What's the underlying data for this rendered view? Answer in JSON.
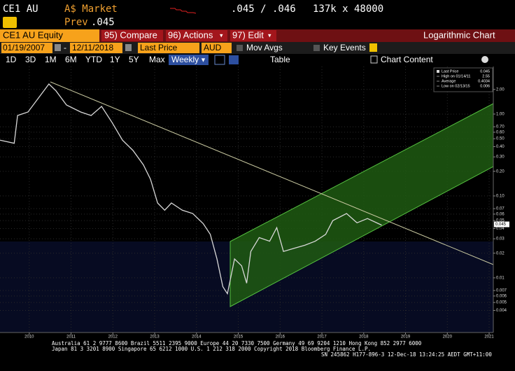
{
  "header": {
    "ticker": "CE1 AU",
    "market": "A$ Market",
    "prev_label": "Prev",
    "prev_value": ".045",
    "quote": ".045 / .046",
    "size": "137k x 48000"
  },
  "menu": {
    "security": "CE1 AU Equity",
    "compare": "95) Compare",
    "actions": "96) Actions",
    "edit": "97) Edit",
    "chart_kind": "Logarithmic Chart"
  },
  "settings": {
    "start_date": "01/19/2007",
    "end_date": "12/11/2018",
    "field": "Last Price",
    "currency": "AUD",
    "mov_avgs": "Mov Avgs",
    "key_events": "Key Events"
  },
  "toolbar": {
    "ranges": [
      "1D",
      "3D",
      "1M",
      "6M",
      "YTD",
      "1Y",
      "5Y",
      "Max"
    ],
    "frequency": "Weekly",
    "table": "Table",
    "chart_content": "Chart Content"
  },
  "chart_data": {
    "type": "line",
    "log_scale": true,
    "grid": true,
    "x": [
      2009.3,
      2009.64,
      2009.72,
      2009.97,
      2010.22,
      2010.47,
      2010.64,
      2010.89,
      2011.23,
      2011.48,
      2011.73,
      2011.98,
      2012.23,
      2012.48,
      2012.73,
      2012.9,
      2013.07,
      2013.24,
      2013.4,
      2013.66,
      2013.91,
      2014.16,
      2014.33,
      2014.49,
      2014.63,
      2014.74,
      2014.91,
      2015.08,
      2015.2,
      2015.3,
      2015.5,
      2015.75,
      2015.92,
      2016.08,
      2016.34,
      2016.59,
      2016.84,
      2017.09,
      2017.26,
      2017.59,
      2017.84,
      2018.09,
      2018.43
    ],
    "series": [
      {
        "name": "Last Price",
        "color": "#d8d8d8",
        "values": [
          0.48,
          0.44,
          0.96,
          1.06,
          1.57,
          2.33,
          1.92,
          1.29,
          1.06,
          0.96,
          1.24,
          0.79,
          0.48,
          0.36,
          0.24,
          0.16,
          0.082,
          0.067,
          0.082,
          0.067,
          0.061,
          0.046,
          0.034,
          0.017,
          0.0078,
          0.0064,
          0.017,
          0.014,
          0.0086,
          0.021,
          0.031,
          0.028,
          0.041,
          0.021,
          0.023,
          0.025,
          0.028,
          0.034,
          0.05,
          0.061,
          0.047,
          0.053,
          0.044
        ]
      }
    ],
    "xlim": [
      2009.3,
      2021.1
    ],
    "xticks": [
      2010,
      2011,
      2012,
      2013,
      2014,
      2015,
      2016,
      2017,
      2018,
      2019,
      2020,
      2021
    ],
    "ylim": [
      0.00215,
      3.81
    ],
    "yticks": [
      {
        "value": 2,
        "label": "2.00"
      },
      {
        "value": 1,
        "label": "1.00"
      },
      {
        "value": 0.7,
        "label": "0.70"
      },
      {
        "value": 0.6,
        "label": "0.60"
      },
      {
        "value": 0.5,
        "label": "0.50"
      },
      {
        "value": 0.4,
        "label": "0.40"
      },
      {
        "value": 0.3,
        "label": "0.30"
      },
      {
        "value": 0.2,
        "label": "0.20"
      },
      {
        "value": 0.1,
        "label": "0.10"
      },
      0.07,
      0.06,
      0.05,
      0.04,
      0.03,
      0.02,
      0.01,
      0.007,
      0.006,
      0.005,
      0.004
    ],
    "last_price": 0.045,
    "legend_rows": [
      {
        "label": "High on 01/14/11",
        "value": 2.55
      },
      {
        "label": "Average",
        "value": 0.4034
      },
      {
        "label": "Low on 02/13/15",
        "value": 0.006
      }
    ]
  },
  "footer": {
    "line1": "Australia 61 2 9777 8600 Brazil 5511 2395 9000 Europe 44 20 7330 7500 Germany 49 69 9204 1210 Hong Kong 852 2977 6000",
    "line2": "Japan 81 3 3201 8900       Singapore 65 6212 1000       U.S. 1 212 318 2000              Copyright 2018 Bloomberg Finance L.P.",
    "line3": "SN 245862 H177-896-3 12-Dec-18 13:24:25 AEDT GMT+11:00"
  }
}
